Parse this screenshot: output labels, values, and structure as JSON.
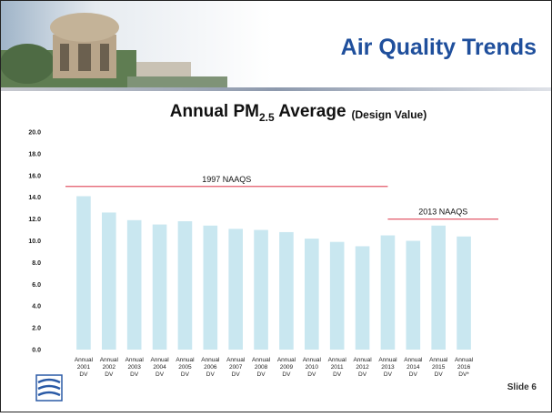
{
  "header": {
    "title": "Air Quality Trends"
  },
  "chart_data": {
    "type": "bar",
    "title": {
      "main": "Annual PM",
      "subscript": "2.5",
      "rest": " Average",
      "note": "(Design Value)"
    },
    "categories": [
      [
        "Annual",
        "2001",
        "DV"
      ],
      [
        "Annual",
        "2002",
        "DV"
      ],
      [
        "Annual",
        "2003",
        "DV"
      ],
      [
        "Annual",
        "2004",
        "DV"
      ],
      [
        "Annual",
        "2005",
        "DV"
      ],
      [
        "Annual",
        "2006",
        "DV"
      ],
      [
        "Annual",
        "2007",
        "DV"
      ],
      [
        "Annual",
        "2008",
        "DV"
      ],
      [
        "Annual",
        "2009",
        "DV"
      ],
      [
        "Annual",
        "2010",
        "DV"
      ],
      [
        "Annual",
        "2011",
        "DV"
      ],
      [
        "Annual",
        "2012",
        "DV"
      ],
      [
        "Annual",
        "2013",
        "DV"
      ],
      [
        "Annual",
        "2014",
        "DV"
      ],
      [
        "Annual",
        "2015",
        "DV"
      ],
      [
        "Annual",
        "2016",
        "DV*"
      ]
    ],
    "values": [
      14.1,
      12.6,
      11.9,
      11.5,
      11.8,
      11.4,
      11.1,
      11.0,
      10.8,
      10.2,
      9.9,
      9.5,
      10.5,
      10.0,
      11.4,
      10.4
    ],
    "color": "#c9e7f0",
    "ylim": [
      0,
      20
    ],
    "yticks": [
      {
        "value": 0,
        "label": "0.0"
      },
      {
        "value": 2,
        "label": "2.0"
      },
      {
        "value": 4,
        "label": "4.0"
      },
      {
        "value": 6,
        "label": "6.0"
      },
      {
        "value": 8,
        "label": "8.0"
      },
      {
        "value": 10,
        "label": "10.0"
      },
      {
        "value": 12,
        "label": "12.0"
      },
      {
        "value": 14,
        "label": "14.0"
      },
      {
        "value": 16,
        "label": "16.0"
      },
      {
        "value": 18,
        "label": "18.0"
      },
      {
        "value": 20,
        "label": "20.0"
      }
    ],
    "reference_lines": [
      {
        "label": "1997 NAAQS",
        "value": 15,
        "color": "#e35a6a"
      },
      {
        "label": "2013 NAAQS",
        "value": 12,
        "color": "#e35a6a"
      }
    ]
  },
  "footer": {
    "slide": "Slide 6"
  }
}
